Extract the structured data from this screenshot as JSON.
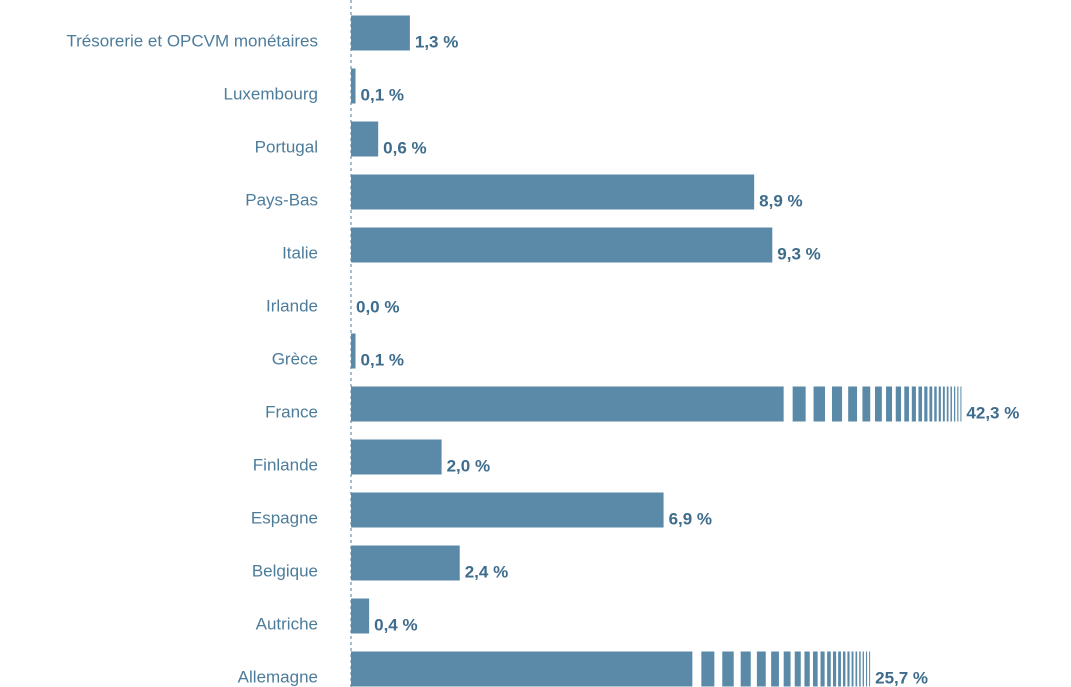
{
  "chart_data": {
    "type": "bar",
    "orientation": "horizontal",
    "color": "#5b8aa8",
    "categories": [
      "Trésorerie et OPCVM monétaires",
      "Luxembourg",
      "Portugal",
      "Pays-Bas",
      "Italie",
      "Irlande",
      "Grèce",
      "France",
      "Finlande",
      "Espagne",
      "Belgique",
      "Autriche",
      "Allemagne"
    ],
    "values": [
      1.3,
      0.1,
      0.6,
      8.9,
      9.3,
      0.0,
      0.1,
      42.3,
      2.0,
      6.9,
      2.4,
      0.4,
      25.7
    ],
    "value_labels": [
      "1,3 %",
      "0,1 %",
      "0,6 %",
      "8,9 %",
      "9,3 %",
      "0,0 %",
      "0,1 %",
      "42,3 %",
      "2,0 %",
      "6,9 %",
      "2,4 %",
      "0,4 %",
      "25,7 %"
    ]
  }
}
